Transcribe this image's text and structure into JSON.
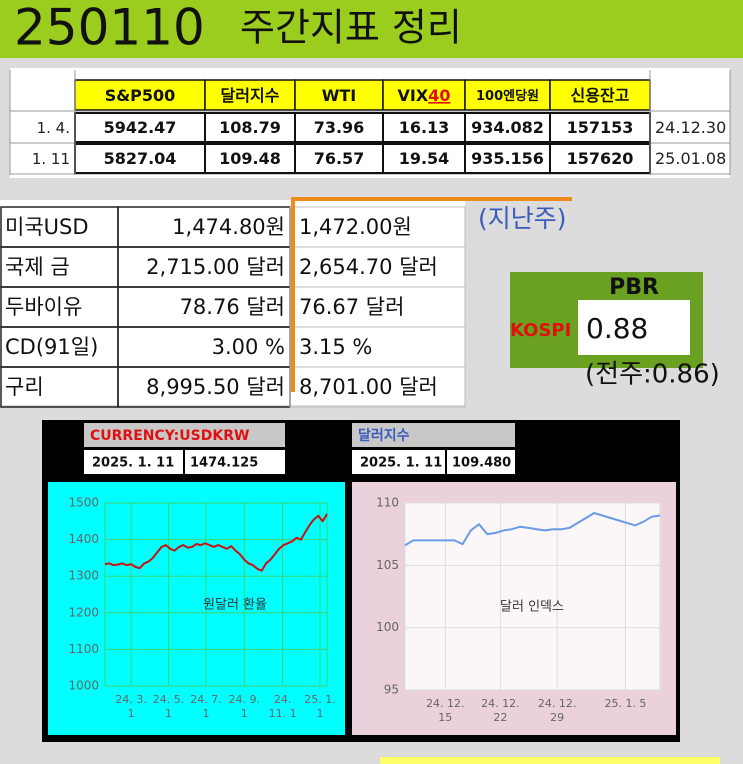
{
  "header": {
    "code": "250110",
    "title": "주간지표 정리"
  },
  "table1": {
    "columns": [
      "S&P500",
      "달러지수",
      "WTI",
      "VIX",
      "100엔당원",
      "신용잔고"
    ],
    "vix_mark": "40",
    "rows": [
      {
        "label": "1. 4.",
        "cells": [
          5942.47,
          108.79,
          73.96,
          16.13,
          934.082,
          157153
        ],
        "note": "24.12.30"
      },
      {
        "label": "1. 11",
        "cells": [
          5827.04,
          109.48,
          76.57,
          19.54,
          935.156,
          157620
        ],
        "note": "25.01.08"
      }
    ]
  },
  "table2": {
    "last_week_label": "(지난주)",
    "rows": [
      {
        "label": "미국USD",
        "current": "1,474.80원",
        "previous": "1,472.00원"
      },
      {
        "label": "국제 금",
        "current": "2,715.00 달러",
        "previous": "2,654.70 달러"
      },
      {
        "label": "두바이유",
        "current": "78.76 달러",
        "previous": "76.67 달러"
      },
      {
        "label": "CD(91일)",
        "current": "3.00 %",
        "previous": "3.15 %"
      },
      {
        "label": "구리",
        "current": "8,995.50 달러",
        "previous": "8,701.00 달러"
      }
    ]
  },
  "pbr": {
    "title": "PBR",
    "market": "KOSPI",
    "value": 0.88,
    "previous": "(전주:0.86)"
  },
  "chart_data": [
    {
      "type": "line",
      "title": "CURRENCY:USDKRW",
      "date": "2025. 1. 11",
      "latest": "1474.125",
      "label": "원달러 환율",
      "color": "#cc1111",
      "values": [
        1333,
        1335,
        1330,
        1332,
        1335,
        1330,
        1333,
        1325,
        1322,
        1335,
        1340,
        1350,
        1365,
        1380,
        1385,
        1375,
        1370,
        1380,
        1385,
        1378,
        1380,
        1388,
        1385,
        1390,
        1385,
        1380,
        1385,
        1380,
        1375,
        1382,
        1370,
        1360,
        1345,
        1335,
        1330,
        1320,
        1315,
        1335,
        1345,
        1360,
        1375,
        1385,
        1390,
        1395,
        1405,
        1400,
        1420,
        1440,
        1455,
        1465,
        1450,
        1470
      ],
      "xlim": [
        0,
        51
      ],
      "xticks": [
        {
          "value": 6,
          "label": [
            "24. 3.",
            "1"
          ]
        },
        {
          "value": 14.6,
          "label": [
            "24. 5.",
            "1"
          ]
        },
        {
          "value": 23.2,
          "label": [
            "24. 7.",
            "1"
          ]
        },
        {
          "value": 32,
          "label": [
            "24. 9.",
            "1"
          ]
        },
        {
          "value": 40.8,
          "label": [
            "24.",
            "11. 1"
          ]
        },
        {
          "value": 49.4,
          "label": [
            "25. 1.",
            "1"
          ]
        }
      ],
      "ylim": [
        1000,
        1500
      ],
      "yticks": [
        1000,
        1100,
        1200,
        1300,
        1400,
        1500
      ],
      "grid": true
    },
    {
      "type": "line",
      "title": "달러지수",
      "date": "2025. 1. 11",
      "latest": "109.480",
      "label": "달러 인덱스",
      "color": "#6a9be8",
      "values": [
        106.6,
        107.0,
        107.0,
        107.0,
        107.0,
        107.0,
        107.0,
        106.7,
        107.8,
        108.3,
        107.5,
        107.6,
        107.8,
        107.9,
        108.1,
        108.0,
        107.9,
        107.8,
        107.9,
        107.9,
        108.0,
        108.4,
        108.8,
        109.2,
        109.0,
        108.8,
        108.6,
        108.4,
        108.2,
        108.5,
        108.9,
        109.0
      ],
      "xlim": [
        0,
        31
      ],
      "xticks": [
        {
          "value": 4.9,
          "label": [
            "24. 12.",
            "15"
          ]
        },
        {
          "value": 11.6,
          "label": [
            "24. 12.",
            "22"
          ]
        },
        {
          "value": 18.5,
          "label": [
            "24. 12.",
            "29"
          ]
        },
        {
          "value": 26.8,
          "label": [
            "25. 1. 5"
          ]
        }
      ],
      "ylim": [
        95,
        110
      ],
      "yticks": [
        95,
        100,
        105,
        110
      ],
      "grid": true
    }
  ]
}
